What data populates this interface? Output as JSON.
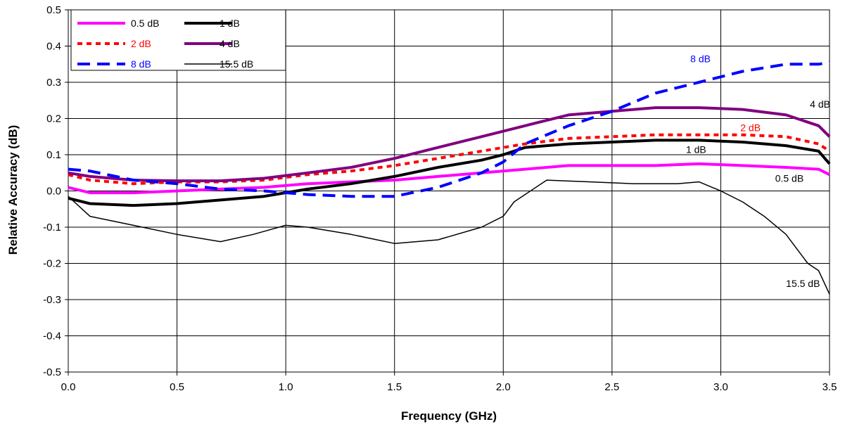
{
  "chart_data": {
    "type": "line",
    "xlabel": "Frequency (GHz)",
    "ylabel": "Relative Accuracy (dB)",
    "xlim": [
      0,
      3.5
    ],
    "ylim": [
      -0.5,
      0.5
    ],
    "x_ticks": [
      "0.0",
      "0.5",
      "1.0",
      "1.5",
      "2.0",
      "2.5",
      "3.0",
      "3.5"
    ],
    "y_ticks": [
      "-0.5",
      "-0.4",
      "-0.3",
      "-0.2",
      "-0.1",
      "0.0",
      "0.1",
      "0.2",
      "0.3",
      "0.4",
      "0.5"
    ],
    "grid": true,
    "legend_position": "top-left",
    "series": [
      {
        "name": "0.5 dB",
        "color": "#ff00ff",
        "style": "solid-thick",
        "x": [
          0,
          0.1,
          0.3,
          0.5,
          0.7,
          0.9,
          1.1,
          1.3,
          1.5,
          1.7,
          1.9,
          2.1,
          2.3,
          2.5,
          2.7,
          2.9,
          3.1,
          3.3,
          3.45,
          3.5
        ],
        "y": [
          0.01,
          -0.005,
          -0.005,
          0.0,
          0.005,
          0.01,
          0.02,
          0.025,
          0.03,
          0.04,
          0.05,
          0.06,
          0.07,
          0.07,
          0.07,
          0.075,
          0.07,
          0.065,
          0.06,
          0.045
        ]
      },
      {
        "name": "1 dB",
        "color": "#000000",
        "style": "solid-thick",
        "x": [
          0,
          0.1,
          0.3,
          0.5,
          0.7,
          0.9,
          1.1,
          1.3,
          1.5,
          1.7,
          1.9,
          2.0,
          2.1,
          2.3,
          2.5,
          2.7,
          2.9,
          3.1,
          3.3,
          3.45,
          3.5
        ],
        "y": [
          -0.02,
          -0.035,
          -0.04,
          -0.035,
          -0.025,
          -0.015,
          0.005,
          0.02,
          0.04,
          0.065,
          0.085,
          0.1,
          0.12,
          0.13,
          0.135,
          0.14,
          0.14,
          0.135,
          0.125,
          0.11,
          0.075
        ]
      },
      {
        "name": "2 dB",
        "color": "#ff0000",
        "style": "dotted",
        "x": [
          0,
          0.1,
          0.3,
          0.5,
          0.7,
          0.9,
          1.1,
          1.3,
          1.5,
          1.7,
          1.9,
          2.1,
          2.3,
          2.5,
          2.7,
          2.9,
          3.1,
          3.3,
          3.45,
          3.5
        ],
        "y": [
          0.045,
          0.03,
          0.02,
          0.025,
          0.025,
          0.03,
          0.045,
          0.055,
          0.07,
          0.09,
          0.11,
          0.13,
          0.145,
          0.15,
          0.155,
          0.155,
          0.155,
          0.15,
          0.13,
          0.11
        ]
      },
      {
        "name": "4 dB",
        "color": "#800080",
        "style": "solid-thick",
        "x": [
          0,
          0.1,
          0.3,
          0.5,
          0.7,
          0.9,
          1.1,
          1.3,
          1.5,
          1.7,
          1.9,
          2.1,
          2.3,
          2.5,
          2.7,
          2.9,
          3.1,
          3.3,
          3.45,
          3.5
        ],
        "y": [
          0.05,
          0.04,
          0.03,
          0.028,
          0.028,
          0.035,
          0.05,
          0.065,
          0.09,
          0.12,
          0.15,
          0.18,
          0.21,
          0.22,
          0.23,
          0.23,
          0.225,
          0.21,
          0.18,
          0.15
        ]
      },
      {
        "name": "8 dB",
        "color": "#0000ff",
        "style": "dashed",
        "x": [
          0,
          0.1,
          0.3,
          0.5,
          0.7,
          0.9,
          1.1,
          1.3,
          1.5,
          1.7,
          1.9,
          2.0,
          2.1,
          2.3,
          2.5,
          2.7,
          2.9,
          3.1,
          3.3,
          3.45,
          3.5
        ],
        "y": [
          0.06,
          0.055,
          0.03,
          0.02,
          0.005,
          0.0,
          -0.01,
          -0.015,
          -0.015,
          0.01,
          0.05,
          0.08,
          0.13,
          0.18,
          0.22,
          0.27,
          0.3,
          0.33,
          0.35,
          0.35,
          0.355
        ]
      },
      {
        "name": "15.5 dB",
        "color": "#000000",
        "style": "solid-thin",
        "x": [
          0,
          0.1,
          0.3,
          0.5,
          0.7,
          0.85,
          1.0,
          1.1,
          1.3,
          1.5,
          1.7,
          1.9,
          2.0,
          2.05,
          2.2,
          2.4,
          2.6,
          2.8,
          2.9,
          3.0,
          3.1,
          3.2,
          3.3,
          3.35,
          3.4,
          3.45,
          3.5
        ],
        "y": [
          -0.015,
          -0.07,
          -0.095,
          -0.12,
          -0.14,
          -0.12,
          -0.095,
          -0.1,
          -0.12,
          -0.145,
          -0.135,
          -0.1,
          -0.07,
          -0.03,
          0.03,
          0.025,
          0.02,
          0.02,
          0.025,
          0.0,
          -0.03,
          -0.07,
          -0.12,
          -0.16,
          -0.2,
          -0.22,
          -0.285
        ]
      }
    ],
    "annotations": [
      {
        "text": "8 dB",
        "x": 2.86,
        "y": 0.355,
        "color": "#0000ff"
      },
      {
        "text": "4 dB",
        "x": 3.41,
        "y": 0.23,
        "color": "#000000"
      },
      {
        "text": "2 dB",
        "x": 3.09,
        "y": 0.165,
        "color": "#ff0000"
      },
      {
        "text": "1 dB",
        "x": 2.84,
        "y": 0.105,
        "color": "#000000"
      },
      {
        "text": "0.5 dB",
        "x": 3.25,
        "y": 0.025,
        "color": "#000000"
      },
      {
        "text": "15.5 dB",
        "x": 3.3,
        "y": -0.265,
        "color": "#000000"
      }
    ]
  }
}
